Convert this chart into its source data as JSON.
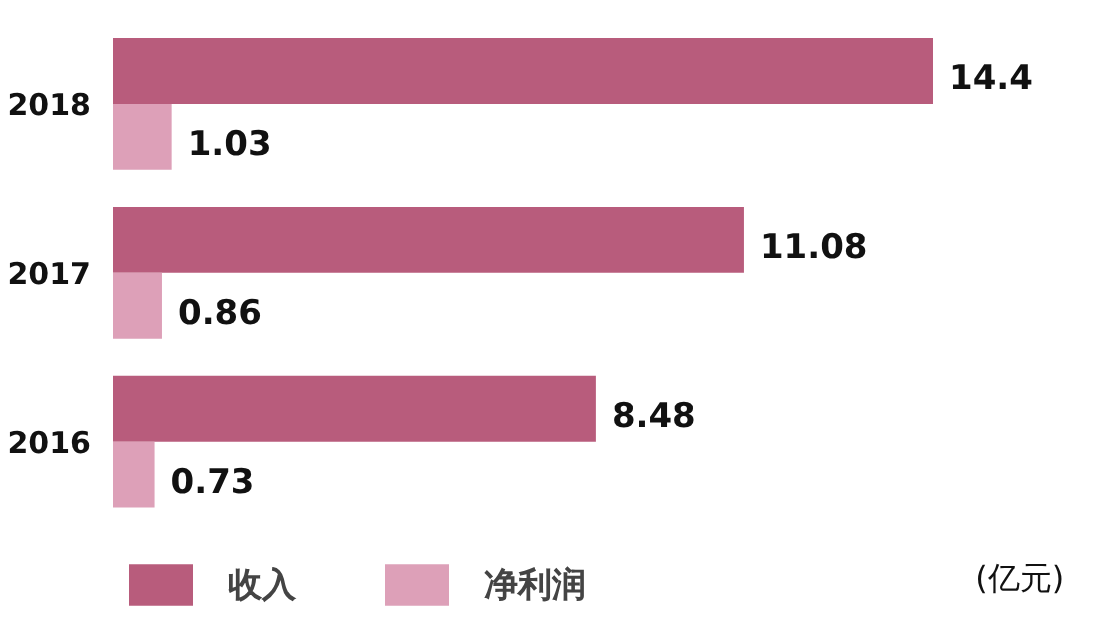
{
  "chart_data": {
    "type": "bar",
    "orientation": "horizontal",
    "categories": [
      "2018",
      "2017",
      "2016"
    ],
    "series": [
      {
        "name": "收入",
        "color": "#b85c7c",
        "values": [
          14.4,
          11.08,
          8.48
        ]
      },
      {
        "name": "净利润",
        "color": "#dda0b8",
        "values": [
          1.03,
          0.86,
          0.73
        ]
      }
    ],
    "data_labels": true,
    "legend": "bottom",
    "grid": false,
    "annotations": [
      "(亿元)"
    ]
  }
}
